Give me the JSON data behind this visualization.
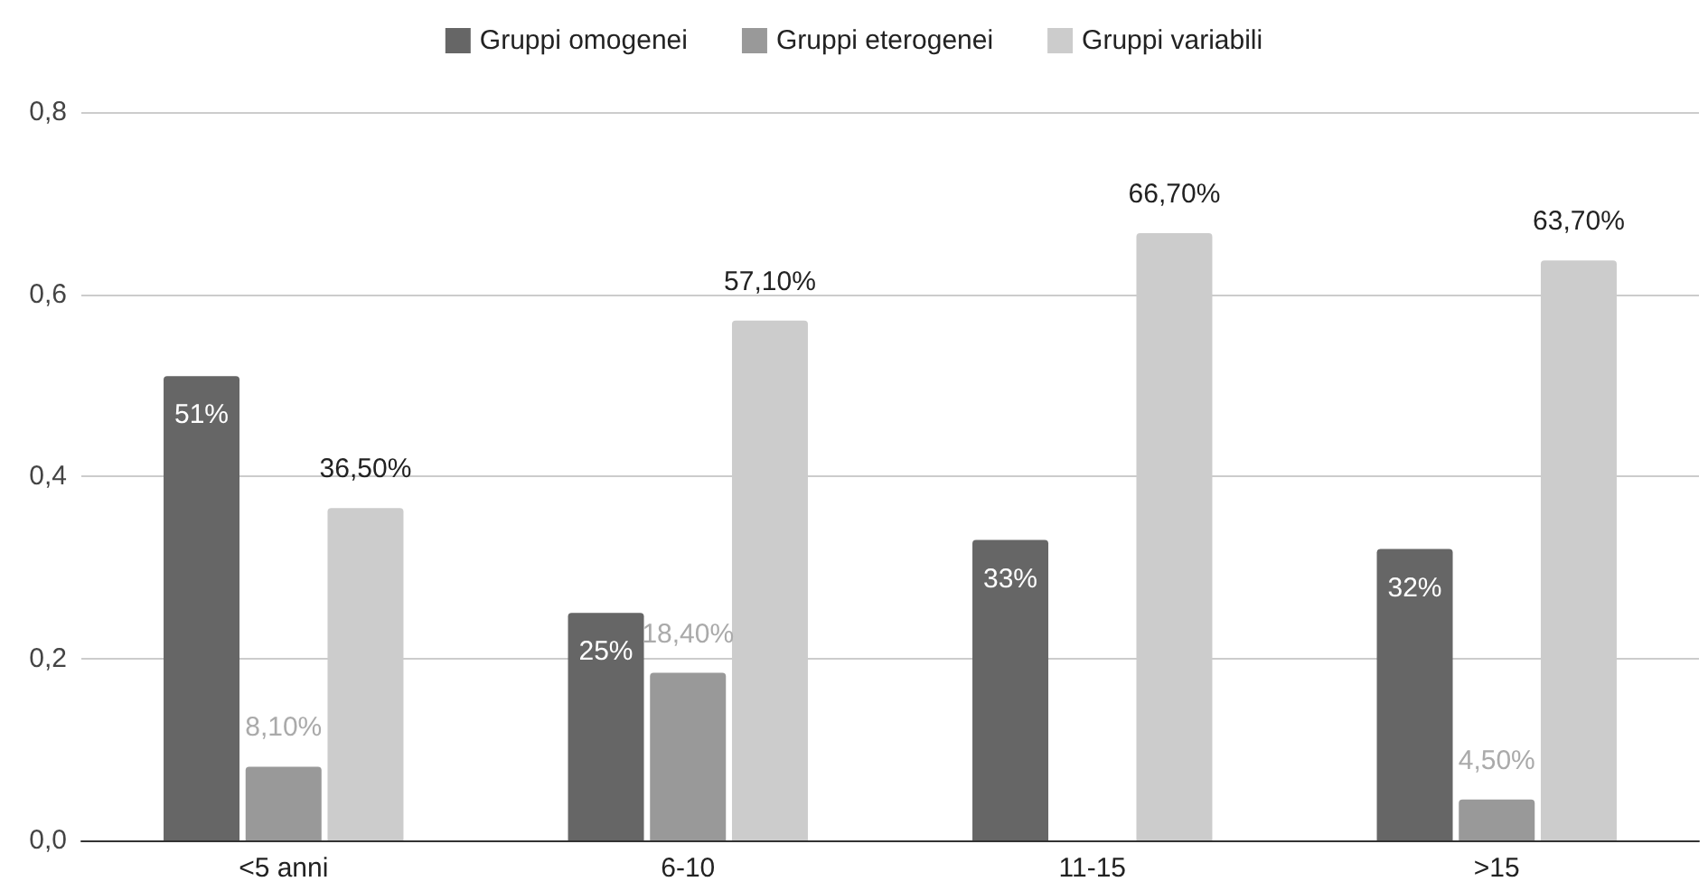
{
  "chart_data": {
    "type": "bar",
    "categories": [
      "<5 anni",
      "6-10",
      "11-15",
      ">15"
    ],
    "series": [
      {
        "name": "Gruppi omogenei",
        "color": "#666666",
        "values": [
          0.51,
          0.25,
          0.33,
          0.32
        ],
        "value_labels": [
          "51%",
          "25%",
          "33%",
          "32%"
        ]
      },
      {
        "name": "Gruppi eterogenei",
        "color": "#999999",
        "values": [
          0.081,
          0.184,
          null,
          0.045
        ],
        "value_labels": [
          "8,10%",
          "18,40%",
          null,
          "4,50%"
        ]
      },
      {
        "name": "Gruppi variabili",
        "color": "#cccccc",
        "values": [
          0.365,
          0.571,
          0.667,
          0.637
        ],
        "value_labels": [
          "36,50%",
          "57,10%",
          "66,70%",
          "63,70%"
        ]
      }
    ],
    "ylim": [
      0,
      0.8
    ],
    "yticks": [
      {
        "value": 0,
        "label": "0,0"
      },
      {
        "value": 0.2,
        "label": "0,2"
      },
      {
        "value": 0.4,
        "label": "0,4"
      },
      {
        "value": 0.6,
        "label": "0,6"
      },
      {
        "value": 0.8,
        "label": "0,8"
      }
    ],
    "grid": "y",
    "legend": "top"
  }
}
